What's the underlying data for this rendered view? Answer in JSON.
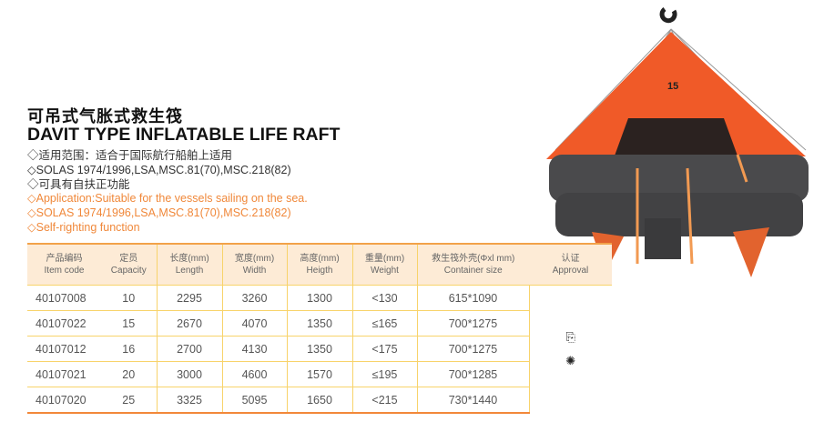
{
  "title_cn": "可吊式气胀式救生筏",
  "title_en": "DAVIT TYPE INFLATABLE LIFE RAFT",
  "features_cn": [
    "◇适用范围：适合于国际航行船舶上适用",
    "◇SOLAS 1974/1996,LSA,MSC.81(70),MSC.218(82)",
    "◇可具有自扶正功能"
  ],
  "features_en": [
    "◇Application:Suitable for the vessels sailing on the sea.",
    "◇SOLAS 1974/1996,LSA,MSC.81(70),MSC.218(82)",
    "◇Self-righting function"
  ],
  "raft_label": "15",
  "colors": {
    "accent": "#f2883a",
    "header_bg": "#fdebd6",
    "grid": "#f8d36a",
    "raft_orange": "#f05a28",
    "raft_grey": "#4a4a4c"
  },
  "table": {
    "headers": [
      {
        "cn": "产品编码",
        "en": "Item code"
      },
      {
        "cn": "定员",
        "en": "Capacity"
      },
      {
        "cn": "长度(mm)",
        "en": "Length"
      },
      {
        "cn": "宽度(mm)",
        "en": "Width"
      },
      {
        "cn": "高度(mm)",
        "en": "Heigth"
      },
      {
        "cn": "重量(mm)",
        "en": "Weight"
      },
      {
        "cn": "救生筏外壳(Φxl mm)",
        "en": "Container size"
      },
      {
        "cn": "认证",
        "en": "Approval"
      }
    ],
    "rows": [
      [
        "40107008",
        "10",
        "2295",
        "3260",
        "1300",
        "<130",
        "615*1090"
      ],
      [
        "40107022",
        "15",
        "2670",
        "4070",
        "1350",
        "≤165",
        "700*1275"
      ],
      [
        "40107012",
        "16",
        "2700",
        "4130",
        "1350",
        "<175",
        "700*1275"
      ],
      [
        "40107021",
        "20",
        "3000",
        "4600",
        "1570",
        "≤195",
        "700*1285"
      ],
      [
        "40107020",
        "25",
        "3325",
        "5095",
        "1650",
        "<215",
        "730*1440"
      ]
    ],
    "approval_icons": [
      "ccs-approval-icon",
      "wheel-approval-icon"
    ]
  }
}
